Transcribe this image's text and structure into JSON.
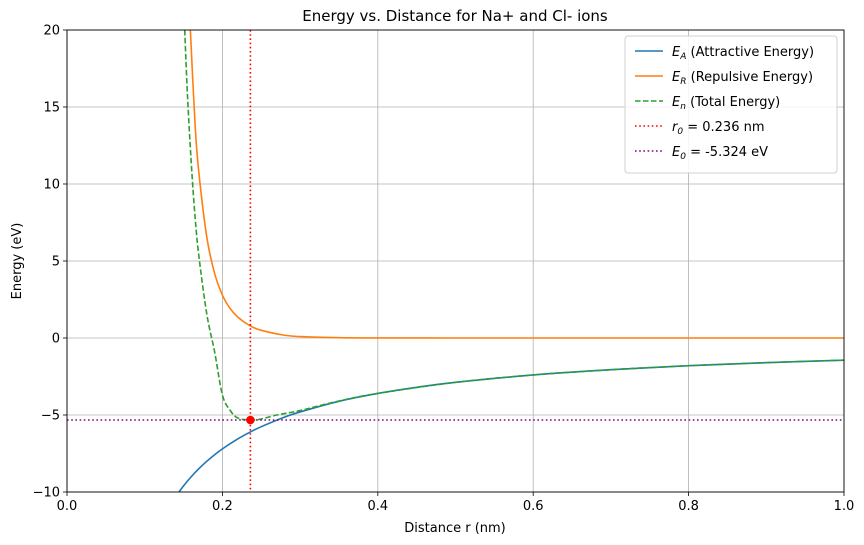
{
  "chart_data": {
    "type": "line",
    "title": "Energy vs. Distance for Na+ and Cl- ions",
    "xlabel": "Distance r (nm)",
    "ylabel": "Energy (eV)",
    "xlim": [
      0.0,
      1.0
    ],
    "ylim": [
      -10,
      20
    ],
    "xticks": [
      0.0,
      0.2,
      0.4,
      0.6,
      0.8,
      1.0
    ],
    "xtick_labels": [
      "0.0",
      "0.2",
      "0.4",
      "0.6",
      "0.8",
      "1.0"
    ],
    "yticks": [
      -10,
      -5,
      0,
      5,
      10,
      15,
      20
    ],
    "ytick_labels": [
      "−10",
      "−5",
      "0",
      "5",
      "10",
      "15",
      "20"
    ],
    "grid": true,
    "legend_position": "top-right",
    "series": [
      {
        "name": "E_A (Attractive Energy)",
        "legend_main": "E",
        "legend_sub": "A",
        "legend_rest": " (Attractive Energy)",
        "color": "#1f77b4",
        "style": "solid",
        "x": [
          0.14,
          0.15,
          0.16,
          0.17,
          0.18,
          0.19,
          0.2,
          0.22,
          0.236,
          0.25,
          0.28,
          0.3,
          0.35,
          0.4,
          0.45,
          0.5,
          0.6,
          0.7,
          0.8,
          0.9,
          1.0
        ],
        "y": [
          -10.29,
          -9.6,
          -9.0,
          -8.47,
          -8.0,
          -7.58,
          -7.2,
          -6.55,
          -6.1,
          -5.76,
          -5.14,
          -4.8,
          -4.11,
          -3.6,
          -3.2,
          -2.88,
          -2.4,
          -2.06,
          -1.8,
          -1.6,
          -1.44
        ]
      },
      {
        "name": "E_R (Repulsive Energy)",
        "legend_main": "E",
        "legend_sub": "R",
        "legend_rest": " (Repulsive Energy)",
        "color": "#ff7f0e",
        "style": "solid",
        "x": [
          0.158,
          0.165,
          0.17,
          0.18,
          0.19,
          0.2,
          0.21,
          0.22,
          0.236,
          0.25,
          0.28,
          0.3,
          0.35,
          0.4,
          0.5,
          0.6,
          0.8,
          1.0
        ],
        "y": [
          20.8,
          13.7,
          10.6,
          6.53,
          4.19,
          2.79,
          1.91,
          1.35,
          0.78,
          0.5,
          0.18,
          0.09,
          0.02,
          0.005,
          0.0,
          0.0,
          0.0,
          0.0
        ]
      },
      {
        "name": "E_n (Total Energy)",
        "legend_main": "E",
        "legend_sub": "n",
        "legend_rest": " (Total Energy)",
        "color": "#2ca02c",
        "style": "dashed",
        "x": [
          0.1515,
          0.155,
          0.16,
          0.165,
          0.17,
          0.18,
          0.19,
          0.2,
          0.21,
          0.22,
          0.236,
          0.25,
          0.27,
          0.3,
          0.35,
          0.4,
          0.5,
          0.6,
          0.7,
          0.8,
          0.9,
          1.0
        ],
        "y": [
          20.0,
          15.8,
          11.3,
          7.75,
          5.2,
          1.53,
          -0.9,
          -3.7,
          -4.7,
          -5.2,
          -5.324,
          -5.26,
          -5.0,
          -4.71,
          -4.09,
          -3.6,
          -2.88,
          -2.4,
          -2.06,
          -1.8,
          -1.6,
          -1.44
        ]
      }
    ],
    "reference_lines": [
      {
        "orientation": "vertical",
        "value": 0.236,
        "color": "#ff0000",
        "legend_main": "r",
        "legend_sub": "0",
        "legend_rest": " = 0.236 nm"
      },
      {
        "orientation": "horizontal",
        "value": -5.324,
        "color": "#800080",
        "legend_main": "E",
        "legend_sub": "0",
        "legend_rest": " = -5.324 eV"
      }
    ],
    "marker": {
      "x": 0.236,
      "y": -5.324,
      "color": "#ff0000"
    }
  }
}
